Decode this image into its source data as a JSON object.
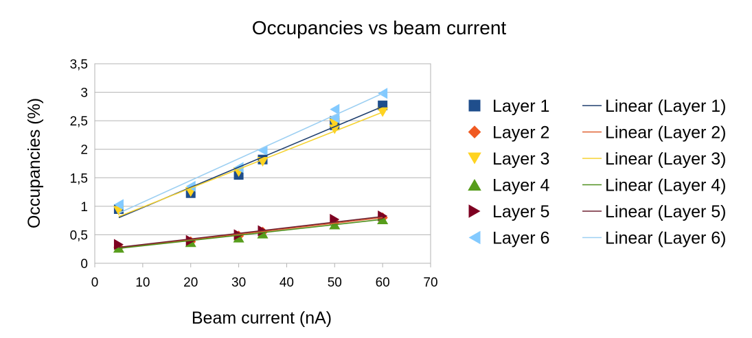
{
  "chart_data": {
    "type": "scatter",
    "title": "Occupancies vs beam current",
    "xlabel": "Beam current (nA)",
    "ylabel": "Occupancies (%)",
    "xlim": [
      0,
      70
    ],
    "ylim": [
      0,
      3.5
    ],
    "x_ticks": [
      0,
      10,
      20,
      30,
      40,
      50,
      60,
      70
    ],
    "y_ticks": [
      0,
      0.5,
      1,
      1.5,
      2,
      2.5,
      3,
      3.5
    ],
    "x_tick_labels": [
      "0",
      "10",
      "20",
      "30",
      "40",
      "50",
      "60",
      "70"
    ],
    "y_tick_labels": [
      "0",
      "0,5",
      "1",
      "1,5",
      "2",
      "2,5",
      "3",
      "3,5"
    ],
    "grid": "horizontal",
    "legend_position": "right",
    "series": [
      {
        "name": "Layer 1",
        "marker": "square",
        "color": "#1f4e8c",
        "points": [
          [
            5,
            0.95
          ],
          [
            20,
            1.23
          ],
          [
            30,
            1.55
          ],
          [
            35,
            1.82
          ],
          [
            50,
            2.42
          ],
          [
            50,
            2.5
          ],
          [
            60,
            2.77
          ]
        ],
        "trend": {
          "name": "Linear (Layer 1)",
          "color": "#1f3f6e",
          "from": [
            5,
            0.8
          ],
          "to": [
            60,
            2.75
          ]
        }
      },
      {
        "name": "Layer 2",
        "marker": "diamond",
        "color": "#f05a22",
        "points": [
          [
            5,
            0.28
          ],
          [
            20,
            0.38
          ],
          [
            30,
            0.48
          ],
          [
            35,
            0.55
          ],
          [
            50,
            0.72
          ],
          [
            60,
            0.8
          ]
        ],
        "trend": {
          "name": "Linear (Layer 2)",
          "color": "#e06030",
          "from": [
            5,
            0.27
          ],
          "to": [
            60,
            0.8
          ]
        }
      },
      {
        "name": "Layer 3",
        "marker": "triangle-down",
        "color": "#ffd320",
        "points": [
          [
            5,
            0.92
          ],
          [
            20,
            1.25
          ],
          [
            30,
            1.6
          ],
          [
            35,
            1.78
          ],
          [
            50,
            2.35
          ],
          [
            50,
            2.45
          ],
          [
            60,
            2.65
          ]
        ],
        "trend": {
          "name": "Linear (Layer 3)",
          "color": "#f5d230",
          "from": [
            5,
            0.82
          ],
          "to": [
            60,
            2.65
          ]
        }
      },
      {
        "name": "Layer 4",
        "marker": "triangle-up",
        "color": "#579d1c",
        "points": [
          [
            5,
            0.27
          ],
          [
            20,
            0.37
          ],
          [
            30,
            0.45
          ],
          [
            35,
            0.52
          ],
          [
            50,
            0.68
          ],
          [
            60,
            0.77
          ]
        ],
        "trend": {
          "name": "Linear (Layer 4)",
          "color": "#4f8f1c",
          "from": [
            5,
            0.26
          ],
          "to": [
            60,
            0.77
          ]
        }
      },
      {
        "name": "Layer 5",
        "marker": "triangle-right",
        "color": "#7e0021",
        "points": [
          [
            5,
            0.33
          ],
          [
            20,
            0.4
          ],
          [
            30,
            0.5
          ],
          [
            35,
            0.57
          ],
          [
            50,
            0.77
          ],
          [
            60,
            0.83
          ]
        ],
        "trend": {
          "name": "Linear (Layer 5)",
          "color": "#6e2030",
          "from": [
            5,
            0.28
          ],
          "to": [
            60,
            0.82
          ]
        }
      },
      {
        "name": "Layer 6",
        "marker": "triangle-left",
        "color": "#83caff",
        "points": [
          [
            5,
            1.03
          ],
          [
            20,
            1.35
          ],
          [
            30,
            1.68
          ],
          [
            35,
            1.98
          ],
          [
            50,
            2.55
          ],
          [
            50,
            2.7
          ],
          [
            60,
            2.98
          ]
        ],
        "trend": {
          "name": "Linear (Layer 6)",
          "color": "#9ccff2",
          "from": [
            5,
            0.88
          ],
          "to": [
            60,
            2.98
          ]
        }
      }
    ]
  }
}
